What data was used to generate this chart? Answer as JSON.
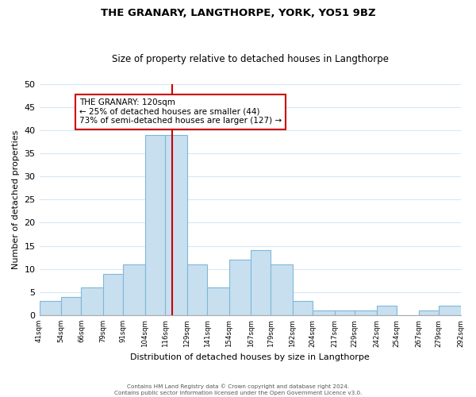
{
  "title": "THE GRANARY, LANGTHORPE, YORK, YO51 9BZ",
  "subtitle": "Size of property relative to detached houses in Langthorpe",
  "xlabel": "Distribution of detached houses by size in Langthorpe",
  "ylabel": "Number of detached properties",
  "bar_edges": [
    41,
    54,
    66,
    79,
    91,
    104,
    116,
    129,
    141,
    154,
    167,
    179,
    192,
    204,
    217,
    229,
    242,
    254,
    267,
    279,
    292
  ],
  "bar_heights": [
    3,
    4,
    6,
    9,
    11,
    39,
    39,
    11,
    6,
    12,
    14,
    11,
    3,
    1,
    1,
    1,
    2,
    0,
    1,
    2
  ],
  "bar_color": "#c8dff0",
  "bar_edge_color": "#7fb8d8",
  "grid_color": "#d5e8f5",
  "property_line_x": 120,
  "property_line_color": "#cc0000",
  "ylim": [
    0,
    50
  ],
  "yticks": [
    0,
    5,
    10,
    15,
    20,
    25,
    30,
    35,
    40,
    45,
    50
  ],
  "annotation_title": "THE GRANARY: 120sqm",
  "annotation_line1": "← 25% of detached houses are smaller (44)",
  "annotation_line2": "73% of semi-detached houses are larger (127) →",
  "annotation_box_color": "#ffffff",
  "annotation_box_edge": "#cc0000",
  "footer_line1": "Contains HM Land Registry data © Crown copyright and database right 2024.",
  "footer_line2": "Contains public sector information licensed under the Open Government Licence v3.0.",
  "tick_labels": [
    "41sqm",
    "54sqm",
    "66sqm",
    "79sqm",
    "91sqm",
    "104sqm",
    "116sqm",
    "129sqm",
    "141sqm",
    "154sqm",
    "167sqm",
    "179sqm",
    "192sqm",
    "204sqm",
    "217sqm",
    "229sqm",
    "242sqm",
    "254sqm",
    "267sqm",
    "279sqm",
    "292sqm"
  ]
}
